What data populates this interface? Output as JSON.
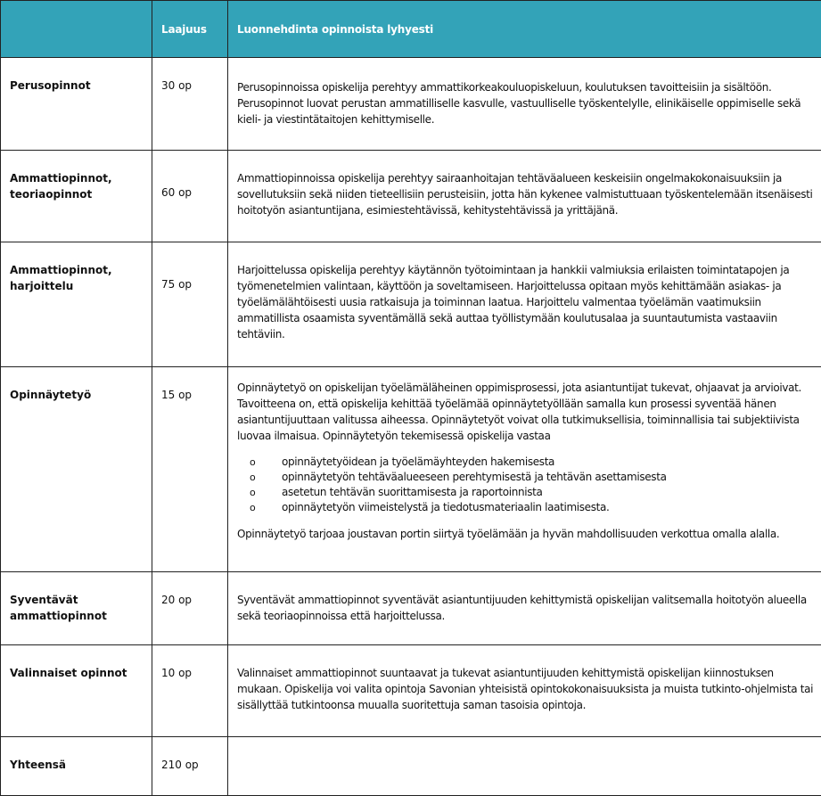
{
  "header": {
    "col1": "",
    "col2": "Laajuus",
    "col3": "Luonnehdinta opinnoista lyhyesti"
  },
  "rows": [
    {
      "name": "Perusopinnot",
      "credits": "30 op",
      "text": "Perusopinnoissa opiskelija perehtyy ammattikorkeakouluopiskeluun, koulutuksen tavoitteisiin ja sisältöön. Perusopinnot luovat perustan ammatilliselle kasvulle, vastuulliselle työskentelylle, elinikäiselle oppimiselle sekä kieli- ja viestintätaitojen kehittymiselle."
    },
    {
      "name": "Ammattiopinnot, teoriaopinnot",
      "credits": "60 op",
      "text": "Ammattiopinnoissa opiskelija perehtyy sairaanhoitajan tehtäväalueen keskeisiin ongelmakokonaisuuksiin ja sovellutuksiin sekä niiden tieteellisiin perusteisiin, jotta hän kykenee valmistuttuaan työskentelemään itsenäisesti hoitotyön asiantuntijana, esimiestehtävissä, kehitystehtävissä ja yrittäjänä."
    },
    {
      "name": "Ammattiopinnot, harjoittelu",
      "credits": "75 op",
      "text": "Harjoittelussa opiskelija perehtyy käytännön työtoimintaan ja hankkii valmiuksia erilaisten toimintatapojen ja työmenetelmien valintaan, käyttöön ja soveltamiseen.  Harjoittelussa opitaan myös kehittämään asiakas- ja työelämälähtöisesti uusia ratkaisuja ja toiminnan laatua.  Harjoittelu valmentaa työelämän vaatimuksiin ammatillista osaamista syventämällä sekä auttaa työllistymään koulutusalaa ja suuntautumista vastaaviin tehtäviin."
    },
    {
      "name": "Opinnäytetyö",
      "credits": "15 op",
      "text": "Opinnäytetyö on opiskelijan työelämäläheinen oppimisprosessi, jota asiantuntijat tukevat, ohjaavat ja arvioivat. Tavoitteena on, että opiskelija kehittää työelämää opinnäytetyöllään samalla kun prosessi syventää hänen asiantuntijuuttaan valitussa aiheessa.  Opinnäytetyöt voivat olla tutkimuksellisia, toiminnallisia tai subjektiivista luovaa ilmaisua. Opinnäytetyön tekemisessä opiskelija vastaa",
      "bullets": [
        "opinnäytetyöidean ja työelämäyhteyden hakemisesta",
        "opinnäytetyön tehtäväalueeseen perehtymisestä ja tehtävän asettamisesta",
        "asetetun tehtävän suorittamisesta ja raportoinnista",
        "opinnäytetyön viimeistelystä ja tiedotusmateriaalin laatimisesta."
      ],
      "text2": "Opinnäytetyö tarjoaa joustavan portin siirtyä työelämään ja hyvän mahdollisuuden verkottua omalla alalla."
    },
    {
      "name": "Syventävät ammattiopinnot",
      "credits": "20 op",
      "text": "Syventävät ammattiopinnot syventävät asiantuntijuuden kehittymistä opiskelijan valitsemalla hoitotyön alueella sekä teoriaopinnoissa että harjoittelussa."
    },
    {
      "name": "Valinnaiset opinnot",
      "credits": "10 op",
      "text": "Valinnaiset ammattiopinnot suuntaavat ja tukevat asiantuntijuuden kehittymistä opiskelijan kiinnostuksen mukaan. Opiskelija voi valita opintoja Savonian yhteisistä opintokokonaisuuksista ja muista tutkinto-ohjelmista tai sisällyttää tutkintoonsa muualla suoritettuja saman tasoisia opintoja."
    },
    {
      "name": "Yhteensä",
      "credits": "210 op",
      "text": ""
    }
  ],
  "colors": {
    "header_bg": "#33a3b8",
    "header_text": "#ffffff"
  }
}
